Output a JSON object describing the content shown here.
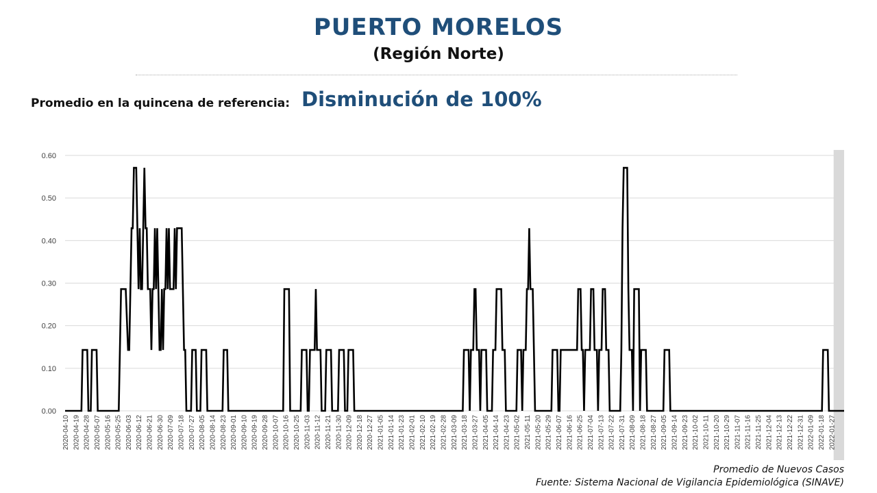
{
  "header": {
    "title": "PUERTO MORELOS",
    "subtitle": "(Región Norte)",
    "reference_label": "Promedio en la quincena de referencia:",
    "reference_value": "Disminución de 100%"
  },
  "footer": {
    "legend_text": "Promedio de Nuevos Casos",
    "source": "Fuente: Sistema Nacional de Vigilancia Epidemiológica (SINAVE)"
  },
  "colors": {
    "title": "#1f4e79",
    "line": "#000000",
    "grid": "#d9d9d9",
    "shade": "#d9d9d9"
  },
  "chart_data": {
    "type": "line",
    "series_name": "Promedio de Nuevos Casos",
    "ylim": [
      0,
      0.6
    ],
    "yticks": [
      "0.00",
      "0.10",
      "0.20",
      "0.30",
      "0.40",
      "0.50",
      "0.60"
    ],
    "grid": "horizontal",
    "shaded_region": {
      "from": "2022-01-29",
      "to": "2022-02-07"
    },
    "x_start": "2020-04-10",
    "x_end": "2022-02-07",
    "xtick_labels": [
      "2020-04-10",
      "2020-04-19",
      "2020-04-28",
      "2020-05-07",
      "2020-05-16",
      "2020-05-25",
      "2020-06-03",
      "2020-06-12",
      "2020-06-21",
      "2020-06-30",
      "2020-07-09",
      "2020-07-18",
      "2020-07-27",
      "2020-08-05",
      "2020-08-14",
      "2020-08-23",
      "2020-09-01",
      "2020-09-10",
      "2020-09-19",
      "2020-09-28",
      "2020-10-07",
      "2020-10-16",
      "2020-10-25",
      "2020-11-03",
      "2020-11-12",
      "2020-11-21",
      "2020-11-30",
      "2020-12-09",
      "2020-12-18",
      "2020-12-27",
      "2021-01-05",
      "2021-01-14",
      "2021-01-23",
      "2021-02-01",
      "2021-02-10",
      "2021-02-19",
      "2021-02-28",
      "2021-03-09",
      "2021-03-18",
      "2021-03-27",
      "2021-04-05",
      "2021-04-14",
      "2021-04-23",
      "2021-05-02",
      "2021-05-11",
      "2021-05-20",
      "2021-05-29",
      "2021-06-07",
      "2021-06-16",
      "2021-06-25",
      "2021-07-04",
      "2021-07-13",
      "2021-07-22",
      "2021-07-31",
      "2021-08-09",
      "2021-08-18",
      "2021-08-27",
      "2021-09-05",
      "2021-09-14",
      "2021-09-23",
      "2021-10-02",
      "2021-10-11",
      "2021-10-20",
      "2021-10-29",
      "2021-11-07",
      "2021-11-16",
      "2021-11-25",
      "2021-12-04",
      "2021-12-13",
      "2021-12-22",
      "2021-12-31",
      "2022-01-09",
      "2022-01-18",
      "2022-01-27"
    ],
    "points": [
      [
        "2020-04-10",
        0.0
      ],
      [
        "2020-04-24",
        0.0
      ],
      [
        "2020-04-25",
        0.143
      ],
      [
        "2020-04-29",
        0.143
      ],
      [
        "2020-04-30",
        0.0
      ],
      [
        "2020-05-02",
        0.0
      ],
      [
        "2020-05-03",
        0.143
      ],
      [
        "2020-05-07",
        0.143
      ],
      [
        "2020-05-08",
        0.0
      ],
      [
        "2020-05-26",
        0.0
      ],
      [
        "2020-05-28",
        0.286
      ],
      [
        "2020-06-01",
        0.286
      ],
      [
        "2020-06-03",
        0.143
      ],
      [
        "2020-06-04",
        0.143
      ],
      [
        "2020-06-06",
        0.429
      ],
      [
        "2020-06-07",
        0.429
      ],
      [
        "2020-06-08",
        0.571
      ],
      [
        "2020-06-09",
        0.571
      ],
      [
        "2020-06-10",
        0.571
      ],
      [
        "2020-06-11",
        0.429
      ],
      [
        "2020-06-12",
        0.286
      ],
      [
        "2020-06-13",
        0.429
      ],
      [
        "2020-06-14",
        0.286
      ],
      [
        "2020-06-15",
        0.286
      ],
      [
        "2020-06-16",
        0.429
      ],
      [
        "2020-06-17",
        0.571
      ],
      [
        "2020-06-18",
        0.429
      ],
      [
        "2020-06-19",
        0.429
      ],
      [
        "2020-06-20",
        0.286
      ],
      [
        "2020-06-22",
        0.286
      ],
      [
        "2020-06-23",
        0.143
      ],
      [
        "2020-06-24",
        0.286
      ],
      [
        "2020-06-25",
        0.286
      ],
      [
        "2020-06-26",
        0.429
      ],
      [
        "2020-06-27",
        0.286
      ],
      [
        "2020-06-28",
        0.429
      ],
      [
        "2020-06-29",
        0.286
      ],
      [
        "2020-06-30",
        0.143
      ],
      [
        "2020-07-01",
        0.143
      ],
      [
        "2020-07-02",
        0.286
      ],
      [
        "2020-07-03",
        0.143
      ],
      [
        "2020-07-04",
        0.286
      ],
      [
        "2020-07-05",
        0.286
      ],
      [
        "2020-07-06",
        0.429
      ],
      [
        "2020-07-07",
        0.286
      ],
      [
        "2020-07-08",
        0.429
      ],
      [
        "2020-07-09",
        0.286
      ],
      [
        "2020-07-12",
        0.286
      ],
      [
        "2020-07-13",
        0.429
      ],
      [
        "2020-07-14",
        0.286
      ],
      [
        "2020-07-15",
        0.429
      ],
      [
        "2020-07-19",
        0.429
      ],
      [
        "2020-07-20",
        0.286
      ],
      [
        "2020-07-21",
        0.143
      ],
      [
        "2020-07-22",
        0.143
      ],
      [
        "2020-07-23",
        0.0
      ],
      [
        "2020-07-27",
        0.0
      ],
      [
        "2020-07-28",
        0.143
      ],
      [
        "2020-07-31",
        0.143
      ],
      [
        "2020-08-01",
        0.0
      ],
      [
        "2020-08-04",
        0.0
      ],
      [
        "2020-08-05",
        0.143
      ],
      [
        "2020-08-09",
        0.143
      ],
      [
        "2020-08-10",
        0.0
      ],
      [
        "2020-08-23",
        0.0
      ],
      [
        "2020-08-24",
        0.143
      ],
      [
        "2020-08-27",
        0.143
      ],
      [
        "2020-08-28",
        0.0
      ],
      [
        "2020-10-14",
        0.0
      ],
      [
        "2020-10-15",
        0.286
      ],
      [
        "2020-10-19",
        0.286
      ],
      [
        "2020-10-20",
        0.0
      ],
      [
        "2020-10-29",
        0.0
      ],
      [
        "2020-10-30",
        0.143
      ],
      [
        "2020-11-03",
        0.143
      ],
      [
        "2020-11-04",
        0.0
      ],
      [
        "2020-11-05",
        0.0
      ],
      [
        "2020-11-06",
        0.143
      ],
      [
        "2020-11-10",
        0.143
      ],
      [
        "2020-11-11",
        0.286
      ],
      [
        "2020-11-12",
        0.143
      ],
      [
        "2020-11-15",
        0.143
      ],
      [
        "2020-11-16",
        0.0
      ],
      [
        "2020-11-19",
        0.0
      ],
      [
        "2020-11-20",
        0.143
      ],
      [
        "2020-11-24",
        0.143
      ],
      [
        "2020-11-25",
        0.0
      ],
      [
        "2020-11-30",
        0.0
      ],
      [
        "2020-12-01",
        0.143
      ],
      [
        "2020-12-05",
        0.143
      ],
      [
        "2020-12-06",
        0.0
      ],
      [
        "2020-12-08",
        0.0
      ],
      [
        "2020-12-09",
        0.143
      ],
      [
        "2020-12-13",
        0.143
      ],
      [
        "2020-12-14",
        0.0
      ],
      [
        "2021-03-17",
        0.0
      ],
      [
        "2021-03-18",
        0.143
      ],
      [
        "2021-03-22",
        0.143
      ],
      [
        "2021-03-23",
        0.0
      ],
      [
        "2021-03-24",
        0.143
      ],
      [
        "2021-03-26",
        0.143
      ],
      [
        "2021-03-27",
        0.286
      ],
      [
        "2021-03-28",
        0.286
      ],
      [
        "2021-03-29",
        0.143
      ],
      [
        "2021-03-31",
        0.143
      ],
      [
        "2021-04-01",
        0.0
      ],
      [
        "2021-04-02",
        0.143
      ],
      [
        "2021-04-06",
        0.143
      ],
      [
        "2021-04-07",
        0.0
      ],
      [
        "2021-04-11",
        0.0
      ],
      [
        "2021-04-12",
        0.143
      ],
      [
        "2021-04-14",
        0.143
      ],
      [
        "2021-04-15",
        0.286
      ],
      [
        "2021-04-19",
        0.286
      ],
      [
        "2021-04-20",
        0.143
      ],
      [
        "2021-04-22",
        0.143
      ],
      [
        "2021-04-23",
        0.0
      ],
      [
        "2021-05-02",
        0.0
      ],
      [
        "2021-05-03",
        0.143
      ],
      [
        "2021-05-06",
        0.143
      ],
      [
        "2021-05-07",
        0.0
      ],
      [
        "2021-05-08",
        0.143
      ],
      [
        "2021-05-10",
        0.143
      ],
      [
        "2021-05-11",
        0.286
      ],
      [
        "2021-05-12",
        0.286
      ],
      [
        "2021-05-13",
        0.429
      ],
      [
        "2021-05-14",
        0.286
      ],
      [
        "2021-05-16",
        0.286
      ],
      [
        "2021-05-17",
        0.143
      ],
      [
        "2021-05-18",
        0.0
      ],
      [
        "2021-06-01",
        0.0
      ],
      [
        "2021-06-02",
        0.143
      ],
      [
        "2021-06-06",
        0.143
      ],
      [
        "2021-06-07",
        0.0
      ],
      [
        "2021-06-08",
        0.0
      ],
      [
        "2021-06-09",
        0.143
      ],
      [
        "2021-06-23",
        0.143
      ],
      [
        "2021-06-24",
        0.286
      ],
      [
        "2021-06-26",
        0.286
      ],
      [
        "2021-06-27",
        0.143
      ],
      [
        "2021-06-28",
        0.143
      ],
      [
        "2021-06-29",
        0.0
      ],
      [
        "2021-06-30",
        0.143
      ],
      [
        "2021-07-04",
        0.143
      ],
      [
        "2021-07-05",
        0.286
      ],
      [
        "2021-07-07",
        0.286
      ],
      [
        "2021-07-08",
        0.143
      ],
      [
        "2021-07-10",
        0.143
      ],
      [
        "2021-07-11",
        0.0
      ],
      [
        "2021-07-12",
        0.143
      ],
      [
        "2021-07-14",
        0.143
      ],
      [
        "2021-07-15",
        0.286
      ],
      [
        "2021-07-17",
        0.286
      ],
      [
        "2021-07-18",
        0.143
      ],
      [
        "2021-07-20",
        0.143
      ],
      [
        "2021-07-21",
        0.0
      ],
      [
        "2021-07-30",
        0.0
      ],
      [
        "2021-07-31",
        0.143
      ],
      [
        "2021-08-01",
        0.429
      ],
      [
        "2021-08-02",
        0.571
      ],
      [
        "2021-08-05",
        0.571
      ],
      [
        "2021-08-06",
        0.286
      ],
      [
        "2021-08-07",
        0.143
      ],
      [
        "2021-08-09",
        0.143
      ],
      [
        "2021-08-10",
        0.0
      ],
      [
        "2021-08-11",
        0.286
      ],
      [
        "2021-08-15",
        0.286
      ],
      [
        "2021-08-16",
        0.0
      ],
      [
        "2021-08-17",
        0.143
      ],
      [
        "2021-08-21",
        0.143
      ],
      [
        "2021-08-22",
        0.0
      ],
      [
        "2021-09-05",
        0.0
      ],
      [
        "2021-09-06",
        0.143
      ],
      [
        "2021-09-10",
        0.143
      ],
      [
        "2021-09-11",
        0.0
      ],
      [
        "2022-01-19",
        0.0
      ],
      [
        "2022-01-20",
        0.143
      ],
      [
        "2022-01-24",
        0.143
      ],
      [
        "2022-01-25",
        0.0
      ],
      [
        "2022-02-07",
        0.0
      ]
    ]
  }
}
